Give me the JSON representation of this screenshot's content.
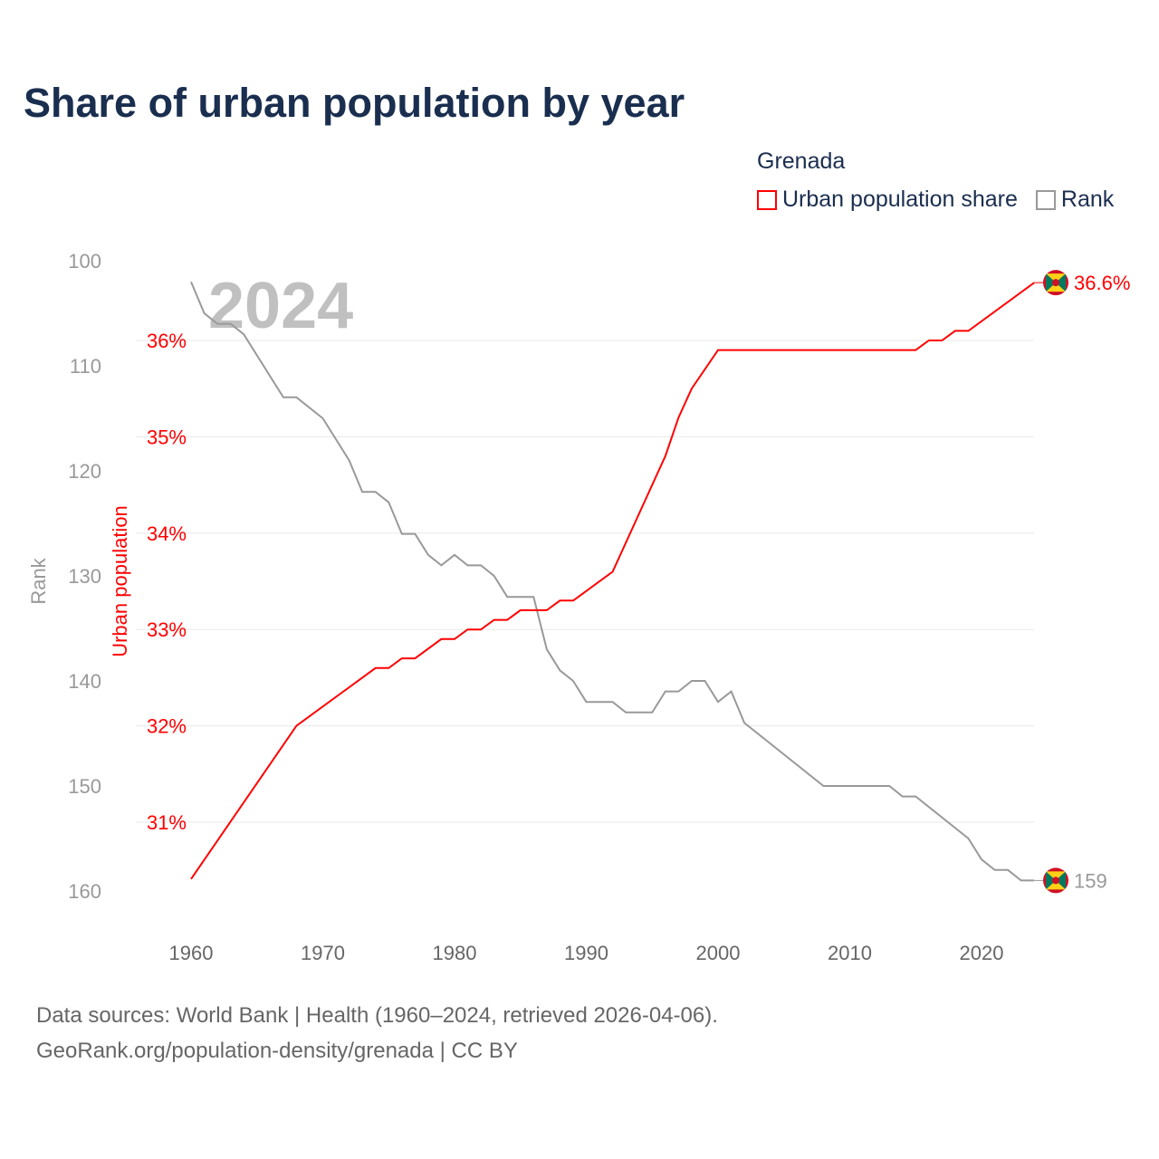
{
  "title": "Share of urban population by year",
  "legend": {
    "title": "Grenada",
    "items": [
      {
        "label": "Urban population share",
        "color": "#ff0000"
      },
      {
        "label": "Rank",
        "color": "#999999"
      }
    ]
  },
  "year_label": "2024",
  "footer": {
    "line1": "Data sources: World Bank | Health (1960–2024, retrieved 2026-04-06).",
    "line2": "GeoRank.org/population-density/grenada | CC BY"
  },
  "chart_data": {
    "type": "line",
    "title": "Share of urban population by year",
    "xlabel": "",
    "ylabel_left_outer": "Rank",
    "ylabel_left_inner": "Urban population",
    "xlim": [
      1960,
      2024
    ],
    "x_ticks": [
      1960,
      1970,
      1980,
      1990,
      2000,
      2010,
      2020
    ],
    "rank_ticks": [
      100,
      110,
      120,
      130,
      140,
      150,
      160
    ],
    "rank_lim": [
      100,
      160
    ],
    "pct_ticks": [
      "31%",
      "32%",
      "33%",
      "34%",
      "35%",
      "36%"
    ],
    "pct_tick_values": [
      31,
      32,
      33,
      34,
      35,
      36
    ],
    "end_labels": {
      "urban": "36.6%",
      "rank": "159"
    },
    "series": [
      {
        "name": "Urban population share",
        "color": "#ff0000",
        "points": [
          [
            1960,
            30.41
          ],
          [
            1968,
            32.0
          ],
          [
            1974,
            32.6
          ],
          [
            1975,
            32.6
          ],
          [
            1976,
            32.7
          ],
          [
            1977,
            32.7
          ],
          [
            1979,
            32.9
          ],
          [
            1980,
            32.9
          ],
          [
            1981,
            33.0
          ],
          [
            1982,
            33.0
          ],
          [
            1983,
            33.1
          ],
          [
            1984,
            33.1
          ],
          [
            1985,
            33.2
          ],
          [
            1987,
            33.2
          ],
          [
            1988,
            33.3
          ],
          [
            1989,
            33.3
          ],
          [
            1992,
            33.6
          ],
          [
            1996,
            34.8
          ],
          [
            1997,
            35.2
          ],
          [
            1998,
            35.5
          ],
          [
            2000,
            35.9
          ],
          [
            2015,
            35.9
          ],
          [
            2016,
            36.0
          ],
          [
            2017,
            36.0
          ],
          [
            2018,
            36.1
          ],
          [
            2019,
            36.1
          ],
          [
            2024,
            36.6
          ]
        ]
      },
      {
        "name": "Rank",
        "color": "#999999",
        "points": [
          [
            1960,
            102
          ],
          [
            1961,
            105
          ],
          [
            1962,
            106
          ],
          [
            1963,
            106
          ],
          [
            1964,
            107
          ],
          [
            1967,
            113
          ],
          [
            1968,
            113
          ],
          [
            1970,
            115
          ],
          [
            1972,
            119
          ],
          [
            1973,
            122
          ],
          [
            1974,
            122
          ],
          [
            1975,
            123
          ],
          [
            1976,
            126
          ],
          [
            1977,
            126
          ],
          [
            1978,
            128
          ],
          [
            1979,
            129
          ],
          [
            1980,
            128
          ],
          [
            1981,
            129
          ],
          [
            1982,
            129
          ],
          [
            1983,
            130
          ],
          [
            1984,
            132
          ],
          [
            1986,
            132
          ],
          [
            1987,
            137
          ],
          [
            1988,
            139
          ],
          [
            1989,
            140
          ],
          [
            1990,
            142
          ],
          [
            1992,
            142
          ],
          [
            1993,
            143
          ],
          [
            1995,
            143
          ],
          [
            1996,
            141
          ],
          [
            1997,
            141
          ],
          [
            1998,
            140
          ],
          [
            1999,
            140
          ],
          [
            2000,
            142
          ],
          [
            2001,
            141
          ],
          [
            2002,
            144
          ],
          [
            2008,
            150
          ],
          [
            2013,
            150
          ],
          [
            2014,
            151
          ],
          [
            2015,
            151
          ],
          [
            2019,
            155
          ],
          [
            2020,
            157
          ],
          [
            2021,
            158
          ],
          [
            2022,
            158
          ],
          [
            2023,
            159
          ],
          [
            2024,
            159
          ]
        ]
      }
    ]
  }
}
